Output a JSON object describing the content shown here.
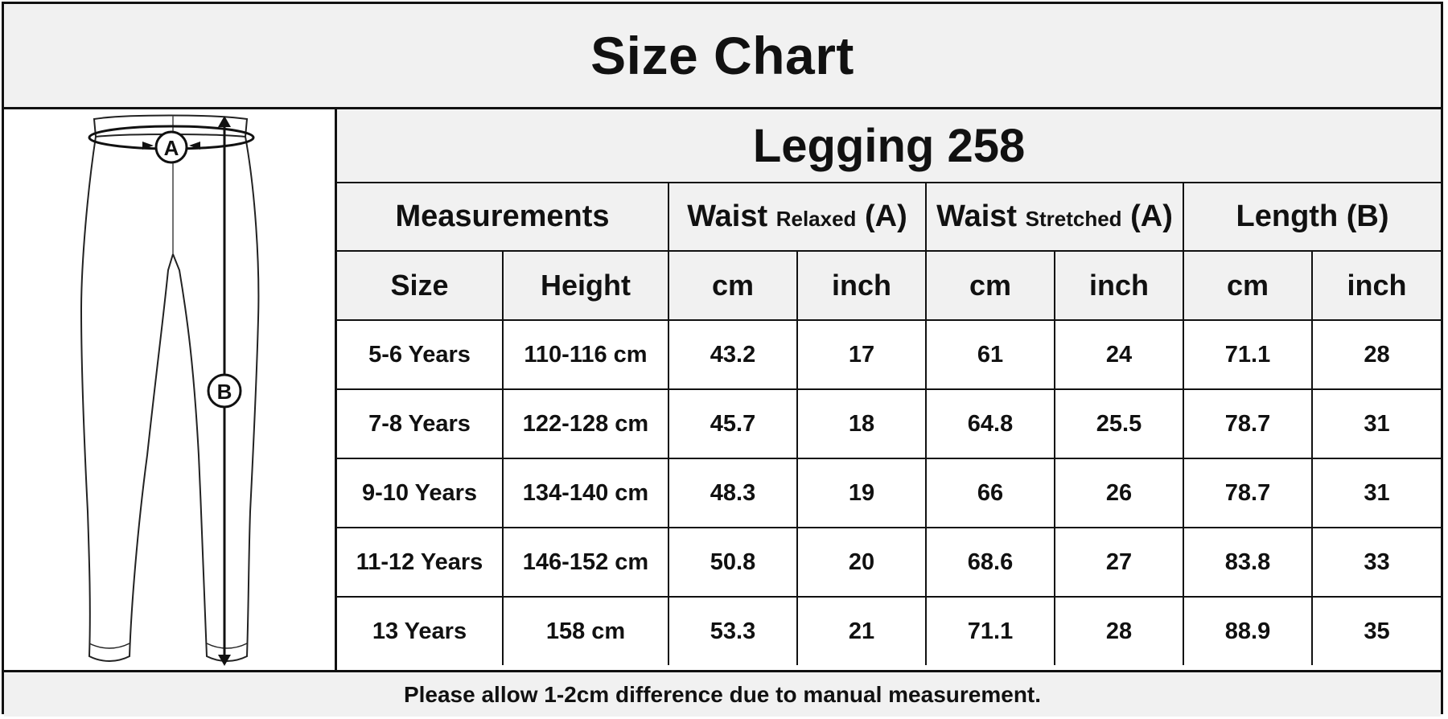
{
  "header": {
    "title": "Size Chart"
  },
  "figure": {
    "label_a": "A",
    "label_b": "B"
  },
  "table": {
    "product": "Legging 258",
    "groups": {
      "measurements": "Measurements",
      "waist_relaxed": {
        "main": "Waist",
        "qualifier": "Relaxed",
        "marker": "(A)"
      },
      "waist_stretched": {
        "main": "Waist",
        "qualifier": "Stretched",
        "marker": "(A)"
      },
      "length": "Length (B)"
    },
    "units": [
      "Size",
      "Height",
      "cm",
      "inch",
      "cm",
      "inch",
      "cm",
      "inch"
    ],
    "rows": [
      [
        "5-6 Years",
        "110-116 cm",
        "43.2",
        "17",
        "61",
        "24",
        "71.1",
        "28"
      ],
      [
        "7-8 Years",
        "122-128 cm",
        "45.7",
        "18",
        "64.8",
        "25.5",
        "78.7",
        "31"
      ],
      [
        "9-10 Years",
        "134-140 cm",
        "48.3",
        "19",
        "66",
        "26",
        "78.7",
        "31"
      ],
      [
        "11-12 Years",
        "146-152 cm",
        "50.8",
        "20",
        "68.6",
        "27",
        "83.8",
        "33"
      ],
      [
        "13 Years",
        "158 cm",
        "53.3",
        "21",
        "71.1",
        "28",
        "88.9",
        "35"
      ]
    ]
  },
  "footer": {
    "note": "Please allow 1-2cm difference due to manual measurement."
  }
}
